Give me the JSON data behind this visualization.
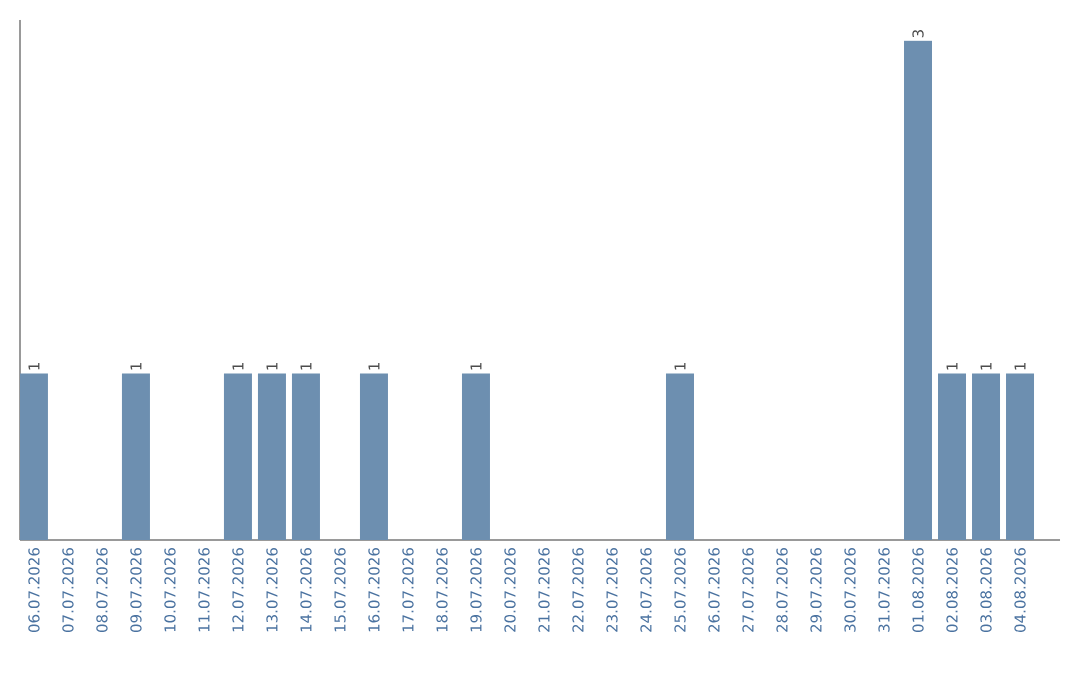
{
  "chart_data": {
    "type": "bar",
    "color": "#6d8fb0",
    "categories": [
      "06.07.2026",
      "07.07.2026",
      "08.07.2026",
      "09.07.2026",
      "10.07.2026",
      "11.07.2026",
      "12.07.2026",
      "13.07.2026",
      "14.07.2026",
      "15.07.2026",
      "16.07.2026",
      "17.07.2026",
      "18.07.2026",
      "19.07.2026",
      "20.07.2026",
      "21.07.2026",
      "22.07.2026",
      "23.07.2026",
      "24.07.2026",
      "25.07.2026",
      "26.07.2026",
      "27.07.2026",
      "28.07.2026",
      "29.07.2026",
      "30.07.2026",
      "31.07.2026",
      "01.08.2026",
      "02.08.2026",
      "03.08.2026",
      "04.08.2026"
    ],
    "values": [
      1,
      0,
      0,
      1,
      0,
      0,
      1,
      1,
      1,
      0,
      1,
      0,
      0,
      1,
      0,
      0,
      0,
      0,
      0,
      1,
      0,
      0,
      0,
      0,
      0,
      0,
      3,
      1,
      1,
      1
    ],
    "value_labels": [
      "1",
      null,
      null,
      "1",
      null,
      null,
      "1",
      "1",
      "1",
      null,
      "1",
      null,
      null,
      "1",
      null,
      null,
      null,
      null,
      null,
      "1",
      null,
      null,
      null,
      null,
      null,
      null,
      "3",
      "1",
      "1",
      "1"
    ],
    "grid": false
  }
}
